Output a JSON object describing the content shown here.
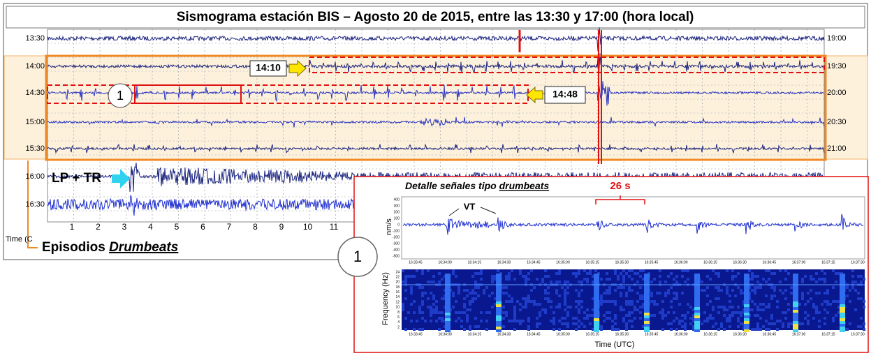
{
  "title": "Sismograma estación BIS – Agosto 20 de 2015, entre las 13:30 y 17:00 (hora local)",
  "seismogram": {
    "left_times": [
      "13:30",
      "14:00",
      "14:30",
      "15:00",
      "15:30",
      "16:00",
      "16:30"
    ],
    "right_times": [
      "19:00",
      "19:30",
      "20:00",
      "20:30",
      "21:00"
    ],
    "x_ticks": [
      "1",
      "2",
      "3",
      "4",
      "5",
      "6",
      "7",
      "8",
      "9",
      "10",
      "11"
    ],
    "time_label": "Time (C"
  },
  "annotations": {
    "start_time": "14:10",
    "end_time": "14:48",
    "episode_marker": "1",
    "lp_tr": "LP + TR",
    "episodes_prefix": "Episodios ",
    "episodes_italic": "Drumbeats"
  },
  "inset": {
    "title_prefix": "Detalle señales tipo ",
    "title_italic": "drumbeats",
    "interval": "26 s",
    "vt": "VT",
    "marker": "1",
    "y_label": "nm/s",
    "spec_y_label": "Frequency (Hz)",
    "x_label": "Time (UTC)",
    "amp_ticks": [
      "400",
      "300",
      "200",
      "100",
      "0",
      "-100",
      "-200",
      "-300",
      "-400",
      "-500"
    ],
    "freq_ticks": [
      "24",
      "22",
      "20",
      "18",
      "16",
      "14",
      "12",
      "10",
      "8",
      "6",
      "4",
      "2"
    ],
    "time_ticks": [
      "16:33:45",
      "16:34:00",
      "16:34:15",
      "16:34:30",
      "16:34:45",
      "16:35:00",
      "16:35:15",
      "16:35:30",
      "16:35:45",
      "16:36:00",
      "16:36:15",
      "16:36:30",
      "16:36:45",
      "16:37:00",
      "16:37:15",
      "16:37:30"
    ]
  }
}
